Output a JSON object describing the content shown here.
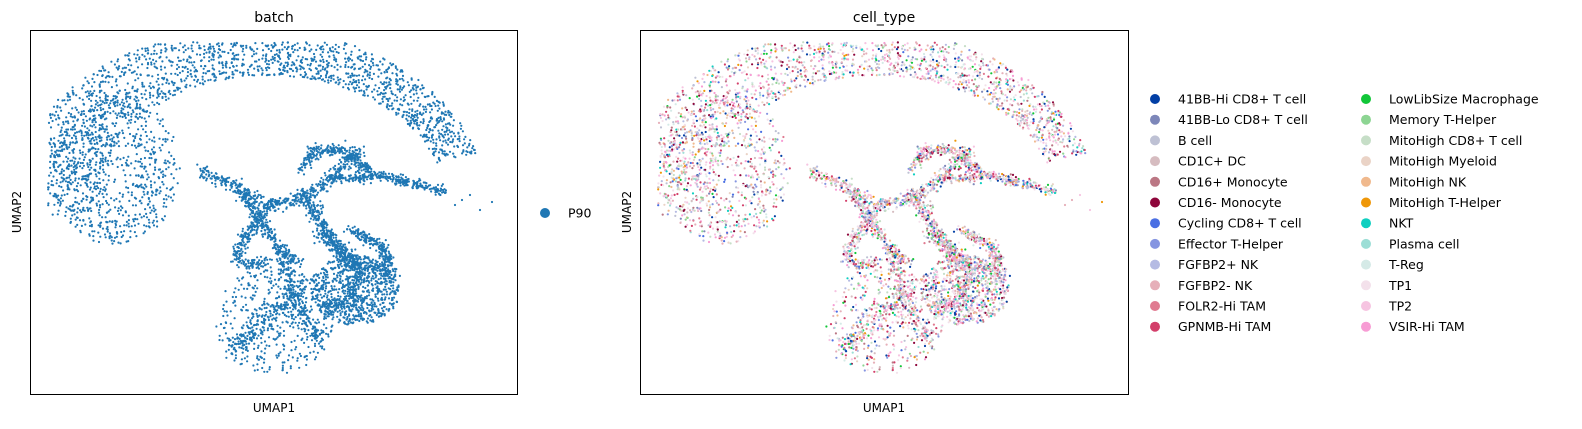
{
  "chart_data": [
    {
      "type": "scatter",
      "title": "batch",
      "xlabel": "UMAP1",
      "ylabel": "UMAP2",
      "ticks": "none",
      "legend_placement": "right",
      "series": [
        {
          "name": "P90",
          "color": "#1f77b4"
        }
      ]
    },
    {
      "type": "scatter",
      "title": "cell_type",
      "xlabel": "UMAP1",
      "ylabel": "UMAP2",
      "ticks": "none",
      "legend_placement": "right, two columns",
      "series": [
        {
          "name": "41BB-Hi CD8+ T cell",
          "color": "#023fa5"
        },
        {
          "name": "41BB-Lo CD8+ T cell",
          "color": "#7d87b9"
        },
        {
          "name": "B cell",
          "color": "#bec1d4"
        },
        {
          "name": "CD1C+ DC",
          "color": "#d6bcc0"
        },
        {
          "name": "CD16+ Monocyte",
          "color": "#bb7784"
        },
        {
          "name": "CD16- Monocyte",
          "color": "#8e063b"
        },
        {
          "name": "Cycling CD8+ T cell",
          "color": "#4a6fe3"
        },
        {
          "name": "Effector T-Helper",
          "color": "#8595e1"
        },
        {
          "name": "FGFBP2+ NK",
          "color": "#b5bbe3"
        },
        {
          "name": "FGFBP2- NK",
          "color": "#e6afb9"
        },
        {
          "name": "FOLR2-Hi TAM",
          "color": "#e07b91"
        },
        {
          "name": "GPNMB-Hi TAM",
          "color": "#d33f6a"
        },
        {
          "name": "LowLibSize Macrophage",
          "color": "#11c638"
        },
        {
          "name": "Memory T-Helper",
          "color": "#8dd593"
        },
        {
          "name": "MitoHigh CD8+ T cell",
          "color": "#c6dec7"
        },
        {
          "name": "MitoHigh Myeloid",
          "color": "#ead3c6"
        },
        {
          "name": "MitoHigh NK",
          "color": "#f0b98d"
        },
        {
          "name": "MitoHigh T-Helper",
          "color": "#ef9708"
        },
        {
          "name": "NKT",
          "color": "#0fcfc0"
        },
        {
          "name": "Plasma cell",
          "color": "#9cded6"
        },
        {
          "name": "T-Reg",
          "color": "#d5eae7"
        },
        {
          "name": "TP1",
          "color": "#f3e1eb"
        },
        {
          "name": "TP2",
          "color": "#f6c4e1"
        },
        {
          "name": "VSIR-Hi TAM",
          "color": "#f79cd4"
        }
      ]
    }
  ]
}
